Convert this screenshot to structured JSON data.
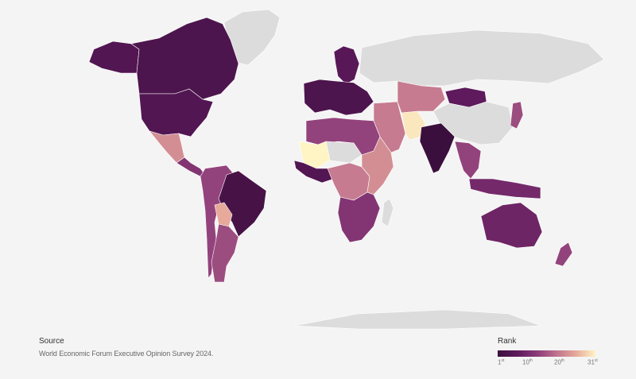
{
  "source": {
    "title": "Source",
    "text": "World Economic Forum Executive Opinion Survey 2024."
  },
  "legend": {
    "title": "Rank",
    "ticks": [
      {
        "num": "1",
        "suffix": "st"
      },
      {
        "num": "10",
        "suffix": "th"
      },
      {
        "num": "20",
        "suffix": "th"
      },
      {
        "num": "31",
        "suffix": "st"
      }
    ],
    "colors": {
      "low_rank": "#3b0f3d",
      "high_rank": "#fff4c4",
      "no_data": "#dcdcdc"
    }
  },
  "map": {
    "regions": [
      {
        "name": "canada",
        "rank": 4
      },
      {
        "name": "usa",
        "rank": 5
      },
      {
        "name": "alaska",
        "rank": 5
      },
      {
        "name": "greenland",
        "rank": null
      },
      {
        "name": "mexico",
        "rank": 22
      },
      {
        "name": "central-america",
        "rank": 12
      },
      {
        "name": "brazil",
        "rank": 3
      },
      {
        "name": "andes",
        "rank": 14
      },
      {
        "name": "bolivia",
        "rank": 25
      },
      {
        "name": "argentina",
        "rank": 15
      },
      {
        "name": "europe-west",
        "rank": 4
      },
      {
        "name": "scandinavia",
        "rank": 6
      },
      {
        "name": "russia",
        "rank": null
      },
      {
        "name": "north-africa",
        "rank": 14
      },
      {
        "name": "sahara",
        "rank": null
      },
      {
        "name": "sahel",
        "rank": 31
      },
      {
        "name": "west-africa",
        "rank": 5
      },
      {
        "name": "central-africa",
        "rank": 20
      },
      {
        "name": "east-africa",
        "rank": 22
      },
      {
        "name": "southern-africa",
        "rank": 12
      },
      {
        "name": "madagascar",
        "rank": null
      },
      {
        "name": "middle-east",
        "rank": 20
      },
      {
        "name": "iran",
        "rank": 30
      },
      {
        "name": "central-asia",
        "rank": 20
      },
      {
        "name": "mongolia",
        "rank": 7
      },
      {
        "name": "china",
        "rank": null
      },
      {
        "name": "india",
        "rank": 1
      },
      {
        "name": "southeast-asia",
        "rank": 14
      },
      {
        "name": "japan",
        "rank": 15
      },
      {
        "name": "indonesia",
        "rank": 10
      },
      {
        "name": "australia",
        "rank": 9
      },
      {
        "name": "new-zealand",
        "rank": 14
      },
      {
        "name": "antarctica",
        "rank": null
      }
    ]
  }
}
